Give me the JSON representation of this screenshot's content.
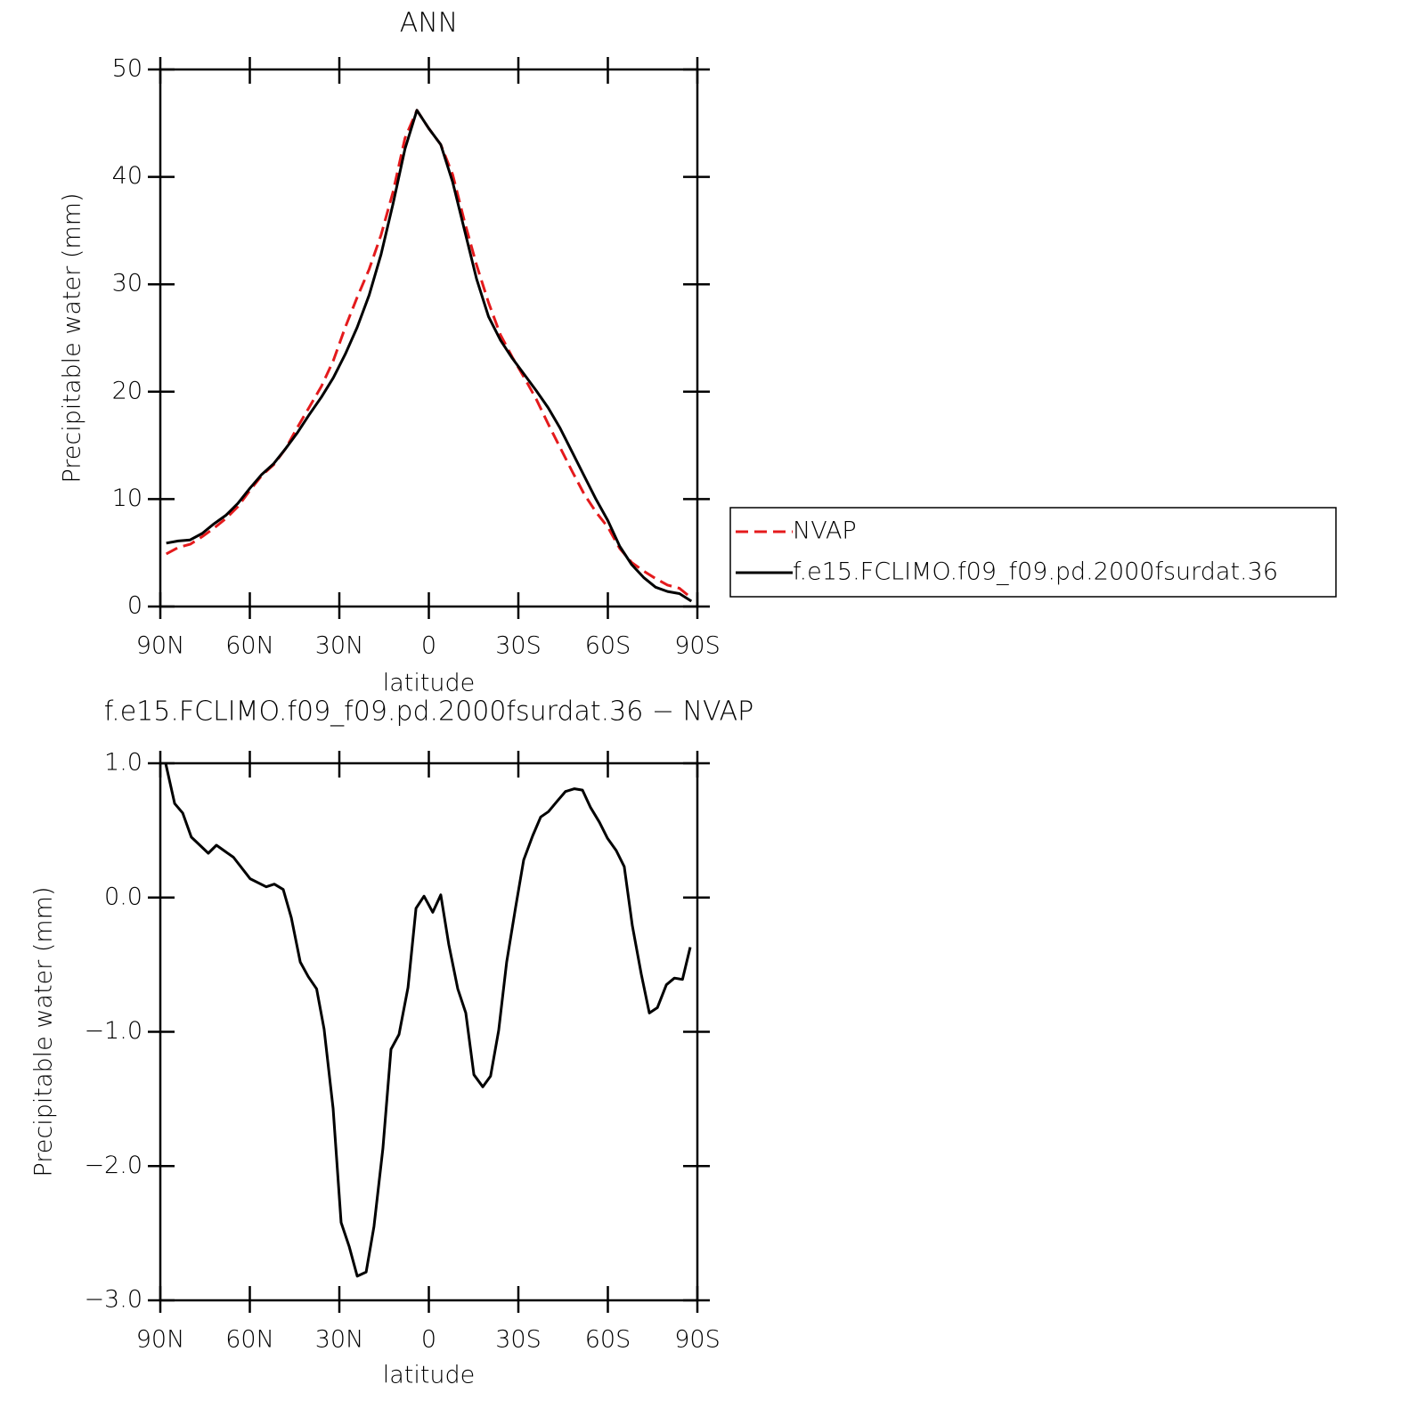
{
  "chart_data": [
    {
      "type": "line",
      "title": "ANN",
      "xlabel": "latitude",
      "ylabel": "Precipitable water (mm)",
      "x": [
        88,
        84,
        80,
        76,
        72,
        68,
        64,
        60,
        56,
        52,
        48,
        44,
        40,
        36,
        32,
        28,
        24,
        20,
        16,
        12,
        8,
        4,
        0,
        -4,
        -8,
        -12,
        -16,
        -20,
        -24,
        -28,
        -32,
        -36,
        -40,
        -44,
        -48,
        -52,
        -56,
        -60,
        -64,
        -68,
        -72,
        -76,
        -80,
        -84,
        -88
      ],
      "xlim": [
        90,
        -90
      ],
      "xticks": [
        {
          "value": 90,
          "label": "90N"
        },
        {
          "value": 60,
          "label": "60N"
        },
        {
          "value": 30,
          "label": "30N"
        },
        0,
        {
          "value": -30,
          "label": "30S"
        },
        {
          "value": -60,
          "label": "60S"
        },
        {
          "value": -90,
          "label": "90S"
        }
      ],
      "ylim": [
        0,
        50
      ],
      "yticks": [
        0,
        10,
        20,
        30,
        40,
        50
      ],
      "legend": "outside-right",
      "series": [
        {
          "name": "NVAP",
          "color": "#e41a1c",
          "dashed": true,
          "values": [
            4.9,
            5.5,
            5.8,
            6.5,
            7.3,
            8.2,
            9.3,
            10.8,
            12.2,
            13.2,
            14.7,
            16.7,
            18.6,
            20.5,
            22.9,
            26.0,
            28.8,
            31.4,
            34.6,
            38.6,
            43.6,
            46.2,
            44.5,
            43.0,
            40.2,
            35.8,
            31.8,
            28.3,
            25.3,
            23.2,
            21.3,
            19.3,
            17.0,
            14.8,
            12.6,
            10.5,
            8.8,
            7.4,
            5.4,
            4.1,
            3.3,
            2.6,
            2.0,
            1.7,
            0.8
          ]
        },
        {
          "name": "f.e15.FCLIMO.f09_f09.pd.2000fsurdat.36",
          "color": "#000000",
          "dashed": false,
          "values": [
            5.9,
            6.1,
            6.2,
            6.8,
            7.7,
            8.5,
            9.6,
            11.0,
            12.3,
            13.3,
            14.7,
            16.2,
            17.9,
            19.5,
            21.3,
            23.5,
            26.0,
            29.0,
            32.8,
            37.5,
            42.6,
            46.2,
            44.5,
            43.0,
            39.5,
            35.0,
            30.5,
            27.0,
            24.8,
            23.1,
            21.6,
            20.1,
            18.5,
            16.6,
            14.4,
            12.2,
            10.0,
            8.0,
            5.6,
            3.9,
            2.7,
            1.8,
            1.4,
            1.2,
            0.5
          ]
        }
      ]
    },
    {
      "type": "line",
      "title": "f.e15.FCLIMO.f09_f09.pd.2000fsurdat.36 − NVAP",
      "xlabel": "latitude",
      "ylabel": "Precipitable water (mm)",
      "x": [
        88.2,
        85.2,
        82.5,
        79.6,
        73.9,
        71.2,
        65.5,
        59.9,
        54.5,
        51.8,
        48.8,
        46.1,
        43.1,
        40.4,
        37.6,
        35.1,
        32.1,
        29.4,
        26.7,
        24.0,
        21.0,
        18.4,
        15.4,
        12.7,
        10.0,
        7.0,
        4.3,
        1.6,
        -1.3,
        -4.0,
        -6.7,
        -9.7,
        -12.4,
        -15.1,
        -18.1,
        -20.7,
        -23.4,
        -26.1,
        -29.1,
        -31.8,
        -34.8,
        -37.5,
        -40.1,
        -43.1,
        -45.8,
        -48.8,
        -51.5,
        -54.2,
        -57.2,
        -59.9,
        -62.8,
        -65.5,
        -68.2,
        -71.2,
        -73.9,
        -76.6,
        -79.6,
        -82.3,
        -85.0,
        -87.6
      ],
      "xlim": [
        90,
        -90
      ],
      "xticks": [
        {
          "value": 90,
          "label": "90N"
        },
        {
          "value": 60,
          "label": "60N"
        },
        {
          "value": 30,
          "label": "30N"
        },
        0,
        {
          "value": -30,
          "label": "30S"
        },
        {
          "value": -60,
          "label": "60S"
        },
        {
          "value": -90,
          "label": "90S"
        }
      ],
      "ylim": [
        -3,
        1
      ],
      "yticks": [
        {
          "value": -3,
          "label": "−3.0"
        },
        {
          "value": -2,
          "label": "−2.0"
        },
        {
          "value": -1,
          "label": "−1.0"
        },
        {
          "value": 0,
          "label": "0.0"
        },
        {
          "value": 1,
          "label": "1.0"
        }
      ],
      "color": "#000000",
      "values": [
        1.0,
        0.7,
        0.63,
        0.45,
        0.33,
        0.39,
        0.3,
        0.14,
        0.08,
        0.1,
        0.06,
        -0.15,
        -0.48,
        -0.59,
        -0.68,
        -0.98,
        -1.57,
        -2.42,
        -2.6,
        -2.82,
        -2.79,
        -2.45,
        -1.87,
        -1.13,
        -1.02,
        -0.67,
        -0.08,
        0.01,
        -0.11,
        0.02,
        -0.35,
        -0.68,
        -0.86,
        -1.32,
        -1.41,
        -1.33,
        -0.99,
        -0.48,
        -0.07,
        0.28,
        0.46,
        0.6,
        0.64,
        0.72,
        0.79,
        0.81,
        0.8,
        0.67,
        0.56,
        0.44,
        0.35,
        0.23,
        -0.21,
        -0.57,
        -0.86,
        -0.82,
        -0.65,
        -0.6,
        -0.61,
        -0.37
      ]
    }
  ]
}
